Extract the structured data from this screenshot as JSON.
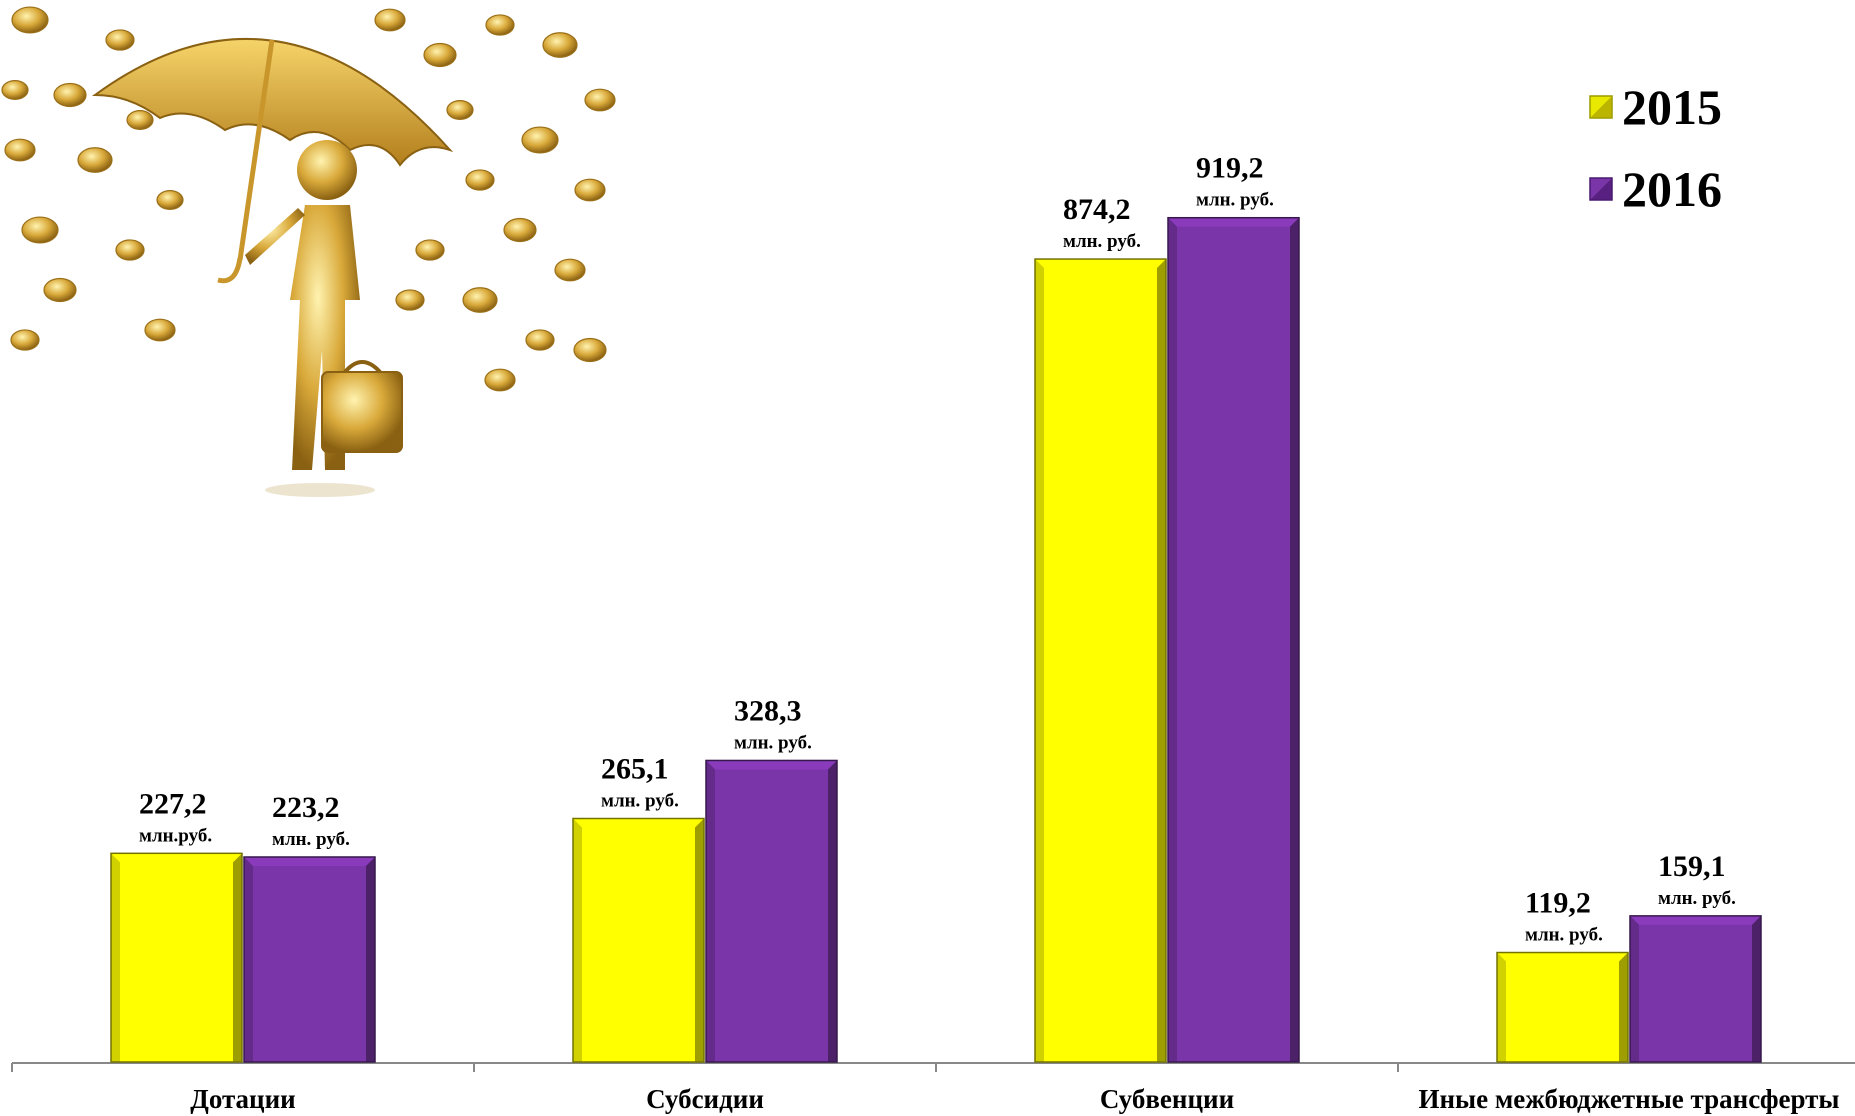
{
  "chart_data": {
    "type": "bar",
    "categories": [
      "Дотации",
      "Субсидии",
      "Субвенции",
      "Иные межбюджетные трансферты"
    ],
    "series": [
      {
        "name": "2015",
        "color": "#ffff00",
        "values": [
          227.2,
          265.1,
          874.2,
          119.2
        ],
        "labels": [
          "227,2",
          "265,1",
          "874,2",
          "119,2"
        ],
        "units": [
          "млн.руб.",
          "млн. руб.",
          "млн. руб.",
          "млн. руб."
        ]
      },
      {
        "name": "2016",
        "color": "#7a35a8",
        "values": [
          223.2,
          328.3,
          919.2,
          159.1
        ],
        "labels": [
          "223,2",
          "328,3",
          "919,2",
          "159,1"
        ],
        "units": [
          "млн. руб.",
          "млн. руб.",
          "млн. руб.",
          "млн. руб."
        ]
      }
    ],
    "legend": {
      "position": "top-right"
    },
    "grid": false,
    "title": "",
    "xlabel": "",
    "ylabel": ""
  },
  "illustration": {
    "icon": "golden-man-umbrella-coins-illustration"
  }
}
